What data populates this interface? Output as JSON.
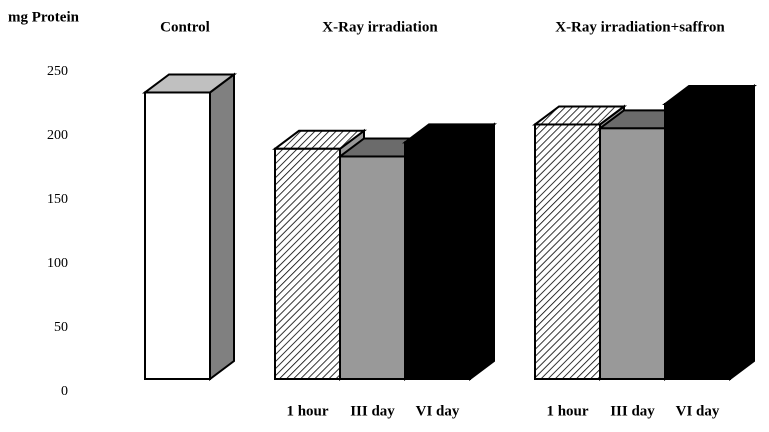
{
  "chart_data": {
    "type": "bar3d",
    "ylabel": "mg Protein",
    "categories": [
      "Control",
      "X-Ray irradiation",
      "X-Ray irradiation+saffron"
    ],
    "series": [
      {
        "name": "Control",
        "color": "#ffffff",
        "values": [
          234,
          null,
          null
        ]
      },
      {
        "name": "1 hour",
        "color": "#ffffff",
        "pattern": "hatch",
        "values": [
          null,
          190,
          209
        ]
      },
      {
        "name": "III day",
        "color": "#999999",
        "values": [
          null,
          184,
          206
        ]
      },
      {
        "name": "VI day",
        "color": "#000000",
        "values": [
          null,
          195,
          225
        ]
      }
    ],
    "ylim": [
      0,
      250
    ],
    "yticks": [
      0,
      50,
      100,
      150,
      200,
      250
    ]
  }
}
